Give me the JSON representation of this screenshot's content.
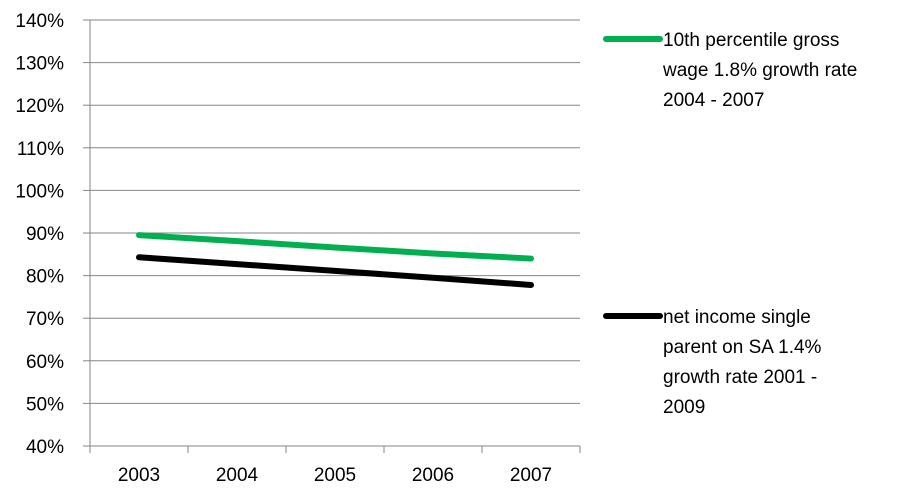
{
  "chart_data": {
    "type": "line",
    "categories": [
      "2003",
      "2004",
      "2005",
      "2006",
      "2007"
    ],
    "ylim": [
      0.4,
      1.4
    ],
    "y_ticks": [
      "40%",
      "50%",
      "60%",
      "70%",
      "80%",
      "90%",
      "100%",
      "110%",
      "120%",
      "130%",
      "140%"
    ],
    "grid": true,
    "legend_position": "right",
    "series": [
      {
        "name": "10th percentile gross wage 1.8% growth rate 2004 - 2007",
        "legend_lines": [
          "10th percentile gross",
          "wage 1.8% growth rate",
          "2004 - 2007"
        ],
        "color": "#00b050",
        "values": [
          0.895,
          0.881,
          0.866,
          0.852,
          0.84
        ]
      },
      {
        "name": "net income single parent on SA 1.4% growth rate 2001 - 2009",
        "legend_lines": [
          "net income single",
          "parent on SA 1.4%",
          "growth rate 2001 -",
          "2009"
        ],
        "color": "#000000",
        "values": [
          0.843,
          0.827,
          0.811,
          0.795,
          0.778
        ]
      }
    ]
  }
}
